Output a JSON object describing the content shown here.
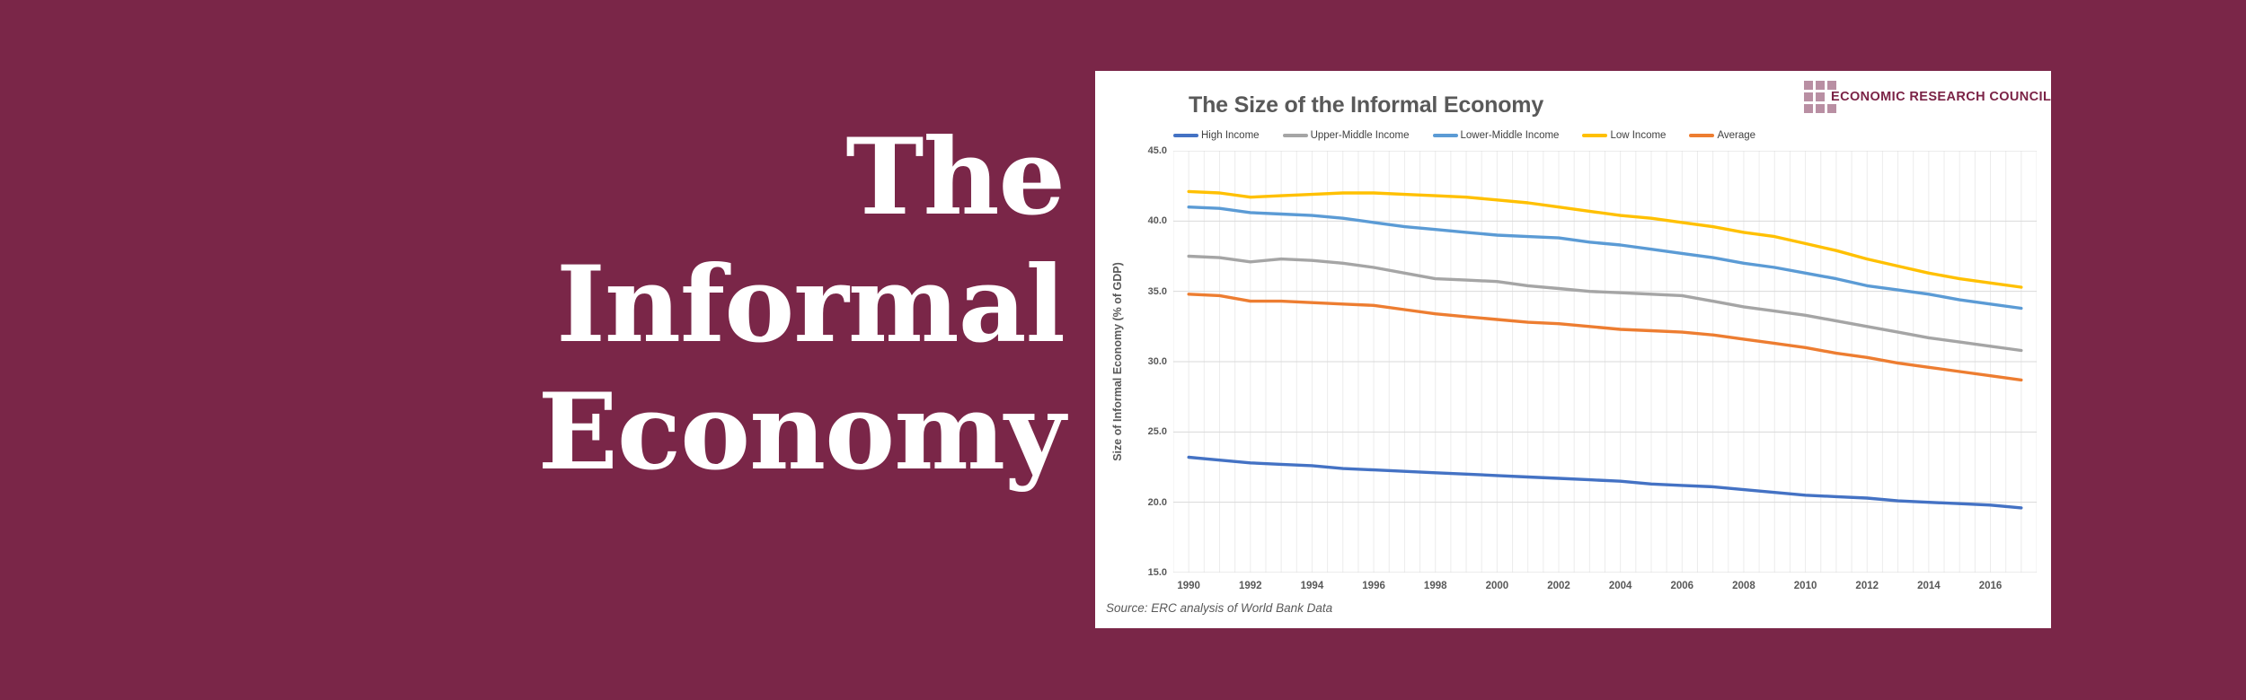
{
  "page": {
    "background_color": "#7A2648"
  },
  "hero": {
    "title": "The Informal Economy",
    "lines": [
      "The",
      "Informal",
      "Economy"
    ],
    "text_color": "#FFFFFF"
  },
  "card": {
    "background_color": "#FFFFFF",
    "title": "The Size of the Informal Economy",
    "title_color": "#595959",
    "logo": {
      "text": "ECONOMIC RESEARCH COUNCIL",
      "text_color": "#7B2346",
      "square_color": "#B98FA3",
      "squares_per_row": [
        3,
        2,
        3
      ]
    },
    "source": "Source: ERC analysis of World Bank Data"
  },
  "chart_data": {
    "type": "line",
    "title": "The Size of the Informal Economy",
    "xlabel": "",
    "ylabel": "Size of Informal Economy (% of GDP)",
    "ylim": [
      15.0,
      45.0
    ],
    "y_tick_step": 5.0,
    "y_ticks": [
      "45.0",
      "40.0",
      "35.0",
      "30.0",
      "25.0",
      "20.0",
      "15.0"
    ],
    "x": [
      1990,
      1991,
      1992,
      1993,
      1994,
      1995,
      1996,
      1997,
      1998,
      1999,
      2000,
      2001,
      2002,
      2003,
      2004,
      2005,
      2006,
      2007,
      2008,
      2009,
      2010,
      2011,
      2012,
      2013,
      2014,
      2015,
      2016,
      2017
    ],
    "x_tick_labels": [
      "1990",
      "1992",
      "1994",
      "1996",
      "1998",
      "2000",
      "2002",
      "2004",
      "2006",
      "2008",
      "2010",
      "2012",
      "2014",
      "2016"
    ],
    "grid": true,
    "gridline_color_h": "#D9D9D9",
    "gridline_color_v": "#ECECEC",
    "legend_position": "top",
    "series": [
      {
        "name": "High Income",
        "color": "#4472C4",
        "values": [
          23.2,
          23.0,
          22.8,
          22.7,
          22.6,
          22.4,
          22.3,
          22.2,
          22.1,
          22.0,
          21.9,
          21.8,
          21.7,
          21.6,
          21.5,
          21.3,
          21.2,
          21.1,
          20.9,
          20.7,
          20.5,
          20.4,
          20.3,
          20.1,
          20.0,
          19.9,
          19.8,
          19.6
        ]
      },
      {
        "name": "Upper-Middle Income",
        "color": "#A5A5A5",
        "values": [
          37.5,
          37.4,
          37.1,
          37.3,
          37.2,
          37.0,
          36.7,
          36.3,
          35.9,
          35.8,
          35.7,
          35.4,
          35.2,
          35.0,
          34.9,
          34.8,
          34.7,
          34.3,
          33.9,
          33.6,
          33.3,
          32.9,
          32.5,
          32.1,
          31.7,
          31.4,
          31.1,
          30.8
        ]
      },
      {
        "name": "Lower-Middle Income",
        "color": "#5B9BD5",
        "values": [
          41.0,
          40.9,
          40.6,
          40.5,
          40.4,
          40.2,
          39.9,
          39.6,
          39.4,
          39.2,
          39.0,
          38.9,
          38.8,
          38.5,
          38.3,
          38.0,
          37.7,
          37.4,
          37.0,
          36.7,
          36.3,
          35.9,
          35.4,
          35.1,
          34.8,
          34.4,
          34.1,
          33.8
        ]
      },
      {
        "name": "Low Income",
        "color": "#FFC000",
        "values": [
          42.1,
          42.0,
          41.7,
          41.8,
          41.9,
          42.0,
          42.0,
          41.9,
          41.8,
          41.7,
          41.5,
          41.3,
          41.0,
          40.7,
          40.4,
          40.2,
          39.9,
          39.6,
          39.2,
          38.9,
          38.4,
          37.9,
          37.3,
          36.8,
          36.3,
          35.9,
          35.6,
          35.3
        ]
      },
      {
        "name": "Average",
        "color": "#ED7D31",
        "values": [
          34.8,
          34.7,
          34.3,
          34.3,
          34.2,
          34.1,
          34.0,
          33.7,
          33.4,
          33.2,
          33.0,
          32.8,
          32.7,
          32.5,
          32.3,
          32.2,
          32.1,
          31.9,
          31.6,
          31.3,
          31.0,
          30.6,
          30.3,
          29.9,
          29.6,
          29.3,
          29.0,
          28.7
        ]
      }
    ]
  }
}
